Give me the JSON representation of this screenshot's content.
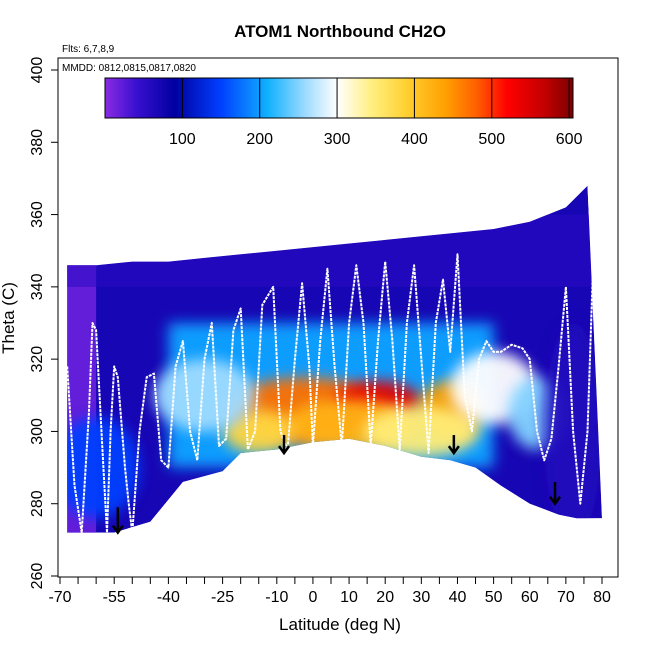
{
  "chart_data": {
    "type": "heatmap",
    "title": "ATOM1 Northbound CH2O",
    "subtitle_flights": "Flts: 6,7,8,9",
    "subtitle_dates": "MMDD: 0812,0815,0817,0820",
    "xlabel": "Latitude (deg N)",
    "ylabel": "Theta (C)",
    "xlim": [
      -72,
      85
    ],
    "ylim": [
      260,
      402
    ],
    "x_ticks_labeled": [
      -70,
      -55,
      -40,
      -25,
      -10,
      0,
      10,
      20,
      30,
      40,
      50,
      60,
      70,
      80
    ],
    "x_tick_labels": [
      "-70",
      "-55",
      "-40",
      "-25",
      "-10",
      "0",
      "10",
      "20",
      "30",
      "40",
      "50",
      "60",
      "70",
      "80"
    ],
    "x_ticks_minor": [
      -65,
      -60,
      -50,
      -45,
      -35,
      -30,
      -20,
      -15,
      -5,
      5,
      15,
      25,
      35,
      45,
      55,
      65,
      75
    ],
    "y_ticks": [
      260,
      280,
      300,
      320,
      340,
      360,
      380,
      400
    ],
    "y_tick_labels": [
      "260",
      "280",
      "300",
      "320",
      "340",
      "360",
      "380",
      "400"
    ],
    "colorbar": {
      "range": [
        0,
        605
      ],
      "ticks": [
        100,
        200,
        300,
        400,
        500,
        600
      ],
      "tick_labels": [
        "100",
        "200",
        "300",
        "400",
        "500",
        "600"
      ],
      "colors": [
        {
          "v": 0,
          "c": "#8a2be2"
        },
        {
          "v": 40,
          "c": "#3a10d0"
        },
        {
          "v": 90,
          "c": "#0000a0"
        },
        {
          "v": 150,
          "c": "#0040ff"
        },
        {
          "v": 210,
          "c": "#10b0ff"
        },
        {
          "v": 260,
          "c": "#a0dcff"
        },
        {
          "v": 300,
          "c": "#ffffff"
        },
        {
          "v": 345,
          "c": "#ffef80"
        },
        {
          "v": 390,
          "c": "#ffd030"
        },
        {
          "v": 440,
          "c": "#ffa000"
        },
        {
          "v": 480,
          "c": "#ff6000"
        },
        {
          "v": 520,
          "c": "#ff0000"
        },
        {
          "v": 570,
          "c": "#c00000"
        },
        {
          "v": 605,
          "c": "#7a0000"
        }
      ]
    },
    "domain_top": [
      [
        -68,
        346
      ],
      [
        -60,
        346
      ],
      [
        -50,
        347
      ],
      [
        -40,
        347
      ],
      [
        -30,
        348
      ],
      [
        -20,
        349
      ],
      [
        -10,
        350
      ],
      [
        0,
        351
      ],
      [
        10,
        352
      ],
      [
        20,
        353
      ],
      [
        30,
        354
      ],
      [
        40,
        355
      ],
      [
        50,
        356
      ],
      [
        60,
        358
      ],
      [
        70,
        362
      ],
      [
        76,
        368
      ]
    ],
    "domain_bottom": [
      [
        -68,
        272
      ],
      [
        -55,
        272
      ],
      [
        -45,
        275
      ],
      [
        -36,
        286
      ],
      [
        -25,
        289
      ],
      [
        -20,
        294
      ],
      [
        -10,
        295
      ],
      [
        0,
        297
      ],
      [
        10,
        298
      ],
      [
        20,
        296
      ],
      [
        30,
        293
      ],
      [
        38,
        292
      ],
      [
        45,
        290
      ],
      [
        52,
        285
      ],
      [
        60,
        280
      ],
      [
        68,
        277
      ],
      [
        73,
        276
      ],
      [
        80,
        276
      ]
    ],
    "hotspots": [
      {
        "lat": -2,
        "theta": 306,
        "value": 470,
        "rx": 22,
        "ry": 9
      },
      {
        "lat": 18,
        "theta": 308,
        "value": 540,
        "rx": 12,
        "ry": 6
      },
      {
        "lat": 10,
        "theta": 302,
        "value": 420,
        "rx": 18,
        "ry": 7
      },
      {
        "lat": 38,
        "theta": 306,
        "value": 440,
        "rx": 9,
        "ry": 8
      },
      {
        "lat": -15,
        "theta": 300,
        "value": 380,
        "rx": 10,
        "ry": 6
      },
      {
        "lat": 30,
        "theta": 300,
        "value": 350,
        "rx": 16,
        "ry": 7
      },
      {
        "lat": 50,
        "theta": 312,
        "value": 300,
        "rx": 12,
        "ry": 10
      },
      {
        "lat": -30,
        "theta": 310,
        "value": 260,
        "rx": 14,
        "ry": 10
      },
      {
        "lat": 62,
        "theta": 305,
        "value": 250,
        "rx": 8,
        "ry": 10
      },
      {
        "lat": -60,
        "theta": 290,
        "value": 150,
        "rx": 12,
        "ry": 14
      },
      {
        "lat": 72,
        "theta": 300,
        "value": 60,
        "rx": 8,
        "ry": 30
      }
    ],
    "flight_track": [
      [
        -68,
        318
      ],
      [
        -66,
        285
      ],
      [
        -64,
        272
      ],
      [
        -62,
        305
      ],
      [
        -61,
        330
      ],
      [
        -60,
        328
      ],
      [
        -58,
        290
      ],
      [
        -57,
        272
      ],
      [
        -56,
        300
      ],
      [
        -55,
        318
      ],
      [
        -54,
        315
      ],
      [
        -52,
        290
      ],
      [
        -51,
        280
      ],
      [
        -50,
        272
      ],
      [
        -48,
        300
      ],
      [
        -46,
        315
      ],
      [
        -44,
        316
      ],
      [
        -42,
        292
      ],
      [
        -40,
        290
      ],
      [
        -38,
        318
      ],
      [
        -36,
        325
      ],
      [
        -34,
        300
      ],
      [
        -32,
        292
      ],
      [
        -30,
        320
      ],
      [
        -28,
        330
      ],
      [
        -26,
        296
      ],
      [
        -24,
        298
      ],
      [
        -22,
        328
      ],
      [
        -20,
        334
      ],
      [
        -18,
        295
      ],
      [
        -16,
        300
      ],
      [
        -14,
        335
      ],
      [
        -11,
        340
      ],
      [
        -9,
        300
      ],
      [
        -7,
        295
      ],
      [
        -5,
        320
      ],
      [
        -3,
        341
      ],
      [
        -1,
        318
      ],
      [
        0,
        296
      ],
      [
        2,
        325
      ],
      [
        4,
        345
      ],
      [
        6,
        318
      ],
      [
        8,
        296
      ],
      [
        10,
        330
      ],
      [
        12,
        346
      ],
      [
        14,
        330
      ],
      [
        16,
        296
      ],
      [
        18,
        325
      ],
      [
        20,
        347
      ],
      [
        22,
        325
      ],
      [
        24,
        295
      ],
      [
        26,
        330
      ],
      [
        28,
        346
      ],
      [
        30,
        320
      ],
      [
        32,
        294
      ],
      [
        34,
        330
      ],
      [
        36,
        342
      ],
      [
        38,
        322
      ],
      [
        40,
        349
      ],
      [
        42,
        310
      ],
      [
        44,
        300
      ],
      [
        46,
        320
      ],
      [
        48,
        325
      ],
      [
        50,
        322
      ],
      [
        52,
        322
      ],
      [
        55,
        324
      ],
      [
        58,
        323
      ],
      [
        60,
        320
      ],
      [
        62,
        300
      ],
      [
        64,
        292
      ],
      [
        66,
        298
      ],
      [
        68,
        318
      ],
      [
        70,
        340
      ],
      [
        72,
        300
      ],
      [
        74,
        280
      ],
      [
        76,
        300
      ],
      [
        78,
        360
      ],
      [
        80,
        290
      ]
    ],
    "arrows": [
      {
        "lat": -54,
        "theta_top": 279,
        "theta_bottom": 272
      },
      {
        "lat": -8,
        "theta_top": 299,
        "theta_bottom": 294
      },
      {
        "lat": 39,
        "theta_top": 299,
        "theta_bottom": 294
      },
      {
        "lat": 67,
        "theta_top": 286,
        "theta_bottom": 280
      }
    ]
  }
}
